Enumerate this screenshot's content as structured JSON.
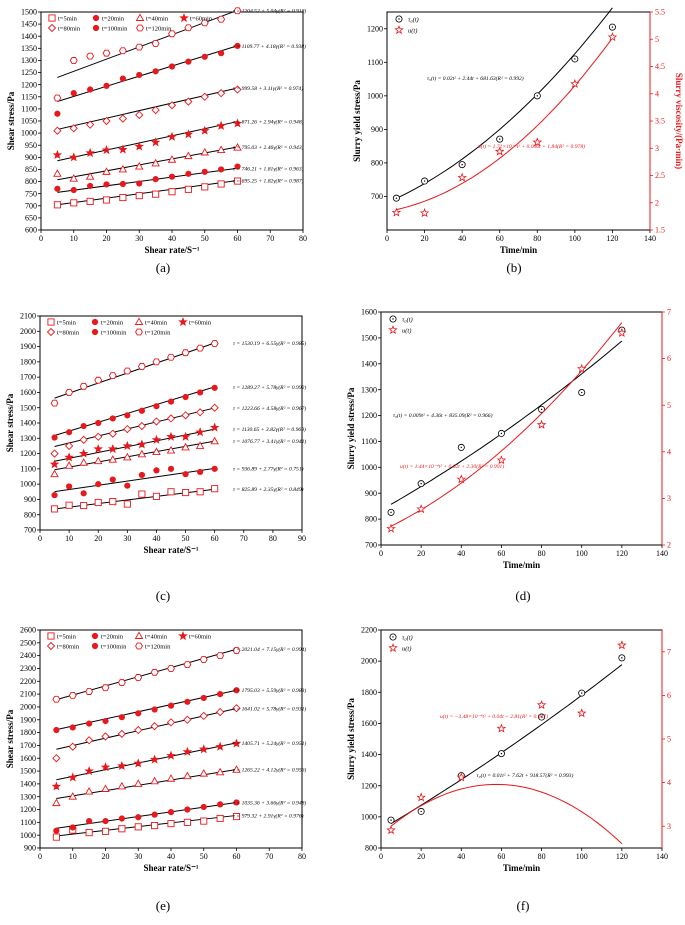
{
  "chart_data": [
    {
      "id": "a",
      "type": "scatter",
      "panel_label": "(a)",
      "xlabel": "Shear rate/S⁻¹",
      "ylabel": "Shear stress/Pa",
      "xlim": [
        0,
        80
      ],
      "ylim": [
        600,
        1500
      ],
      "xticks": [
        0,
        10,
        20,
        30,
        40,
        50,
        60,
        70,
        80
      ],
      "yticks": [
        600,
        650,
        700,
        750,
        800,
        850,
        900,
        950,
        1000,
        1050,
        1100,
        1150,
        1200,
        1250,
        1300,
        1350,
        1400,
        1450,
        1500
      ],
      "x": [
        5,
        10,
        15,
        20,
        25,
        30,
        35,
        40,
        45,
        50,
        55,
        60
      ],
      "series": [
        {
          "name": "t=5min",
          "marker": "square-open",
          "values": [
            704,
            712,
            718,
            724,
            734,
            742,
            748,
            758,
            768,
            778,
            790,
            802
          ],
          "fit": [
            695.25,
            1.82
          ],
          "equation": "τ = 695.25 + 1.82γ(R² = 0.987)"
        },
        {
          "name": "t=20min",
          "marker": "circle-filled",
          "values": [
            770,
            765,
            782,
            788,
            790,
            792,
            810,
            820,
            832,
            840,
            850,
            862
          ],
          "fit": [
            746.21,
            1.81
          ],
          "equation": "τ = 746.21 + 1.81γ(R² = 0.963)"
        },
        {
          "name": "t=40min",
          "marker": "triangle-open",
          "values": [
            832,
            812,
            820,
            840,
            850,
            862,
            875,
            890,
            905,
            920,
            930,
            940
          ],
          "fit": [
            795.03,
            2.46
          ],
          "equation": "τ = 795.03 + 2.46γ(R² = 0.943)"
        },
        {
          "name": "t=60min",
          "marker": "star-filled",
          "values": [
            910,
            900,
            918,
            930,
            932,
            945,
            962,
            985,
            995,
            1010,
            1030,
            1040
          ],
          "fit": [
            871.26,
            2.94
          ],
          "equation": "τ = 871.26 + 2.94γ(R² = 0.948)"
        },
        {
          "name": "t=80min",
          "marker": "diamond-open",
          "values": [
            1010,
            1020,
            1035,
            1050,
            1060,
            1075,
            1095,
            1115,
            1130,
            1150,
            1165,
            1180
          ],
          "fit": [
            999.58,
            3.11
          ],
          "equation": "τ = 999.58 + 3.11γ(R² = 0.974)"
        },
        {
          "name": "t=100min",
          "marker": "circle-filled",
          "values": [
            1080,
            1165,
            1180,
            1195,
            1225,
            1240,
            1255,
            1275,
            1295,
            1315,
            1330,
            1360
          ],
          "fit": [
            1109.77,
            4.18
          ],
          "equation": "τ = 1109.77 + 4.18γ(R² = 0.938)"
        },
        {
          "name": "t=120min",
          "marker": "hexagon-open",
          "values": [
            1145,
            1300,
            1318,
            1330,
            1340,
            1355,
            1370,
            1410,
            1435,
            1455,
            1470,
            1505
          ],
          "fit": [
            1204.52,
            5.04
          ],
          "equation": "τ = 1204.52 + 5.04γ(R² = 0.918)"
        }
      ]
    },
    {
      "id": "b",
      "type": "scatter",
      "panel_label": "(b)",
      "xlabel": "Time/min",
      "ylabel": "Slurry yield stress/Pa",
      "ylabel_right": "Slurry viscosity/(Pa·min)",
      "xlim": [
        0,
        140
      ],
      "ylim": [
        600,
        1250
      ],
      "ylim_right": [
        1.5,
        5.5
      ],
      "xticks": [
        0,
        20,
        40,
        60,
        80,
        100,
        120,
        140
      ],
      "yticks": [
        700,
        800,
        900,
        1000,
        1100,
        1200
      ],
      "yticks_right": [
        1.5,
        2.0,
        2.5,
        3.0,
        3.5,
        4.0,
        4.5,
        5.0,
        5.5
      ],
      "x": [
        5,
        20,
        40,
        60,
        80,
        100,
        120
      ],
      "series": [
        {
          "name": "τ₀(t)",
          "axis": "left",
          "color": "#000000",
          "marker": "circle-dot",
          "values": [
            695,
            746,
            795,
            871,
            1000,
            1110,
            1205
          ],
          "poly": [
            0.02,
            2.44,
            681.63
          ],
          "equation": "τ₀(t) = 0.02t² + 2.44t + 681.63(R² = 0.992)"
        },
        {
          "name": "u(t)",
          "axis": "right",
          "color": "#e8191d",
          "marker": "star-open",
          "values": [
            1.82,
            1.81,
            2.46,
            2.94,
            3.11,
            4.18,
            5.04
          ],
          "poly": [
            0.000171,
            0.006,
            1.84
          ],
          "equation": "u(t) = 1.71×10⁻⁴t² + 0.006t + 1.84(R² = 0.978)"
        }
      ]
    },
    {
      "id": "c",
      "type": "scatter",
      "panel_label": "(c)",
      "xlabel": "Shear rate/S⁻¹",
      "ylabel": "Shear stress/Pa",
      "xlim": [
        0,
        90
      ],
      "ylim": [
        700,
        2100
      ],
      "xticks": [
        0,
        10,
        20,
        30,
        40,
        50,
        60,
        70,
        80,
        90
      ],
      "yticks": [
        700,
        800,
        900,
        1000,
        1100,
        1200,
        1300,
        1400,
        1500,
        1600,
        1700,
        1800,
        1900,
        2000,
        2100
      ],
      "x": [
        5,
        10,
        15,
        20,
        25,
        30,
        35,
        40,
        45,
        50,
        55,
        60
      ],
      "series": [
        {
          "name": "t=5min",
          "marker": "square-open",
          "values": [
            838,
            862,
            860,
            880,
            886,
            870,
            935,
            920,
            950,
            945,
            950,
            970
          ],
          "fit": [
            825.89,
            2.35
          ],
          "equation": "τ = 825.89 + 2.35γ(R² = 0.849)"
        },
        {
          "name": "t=20min",
          "marker": "circle-filled",
          "values": [
            928,
            985,
            940,
            1000,
            1030,
            990,
            1060,
            1090,
            1100,
            1065,
            1080,
            1100
          ],
          "fit": [
            936.89,
            2.77
          ],
          "equation": "τ = 936.89 + 2.77γ(R² = 0.751)"
        },
        {
          "name": "t=40min",
          "marker": "triangle-open",
          "values": [
            1065,
            1120,
            1140,
            1150,
            1160,
            1175,
            1195,
            1210,
            1220,
            1240,
            1250,
            1280
          ],
          "fit": [
            1076.77,
            3.41
          ],
          "equation": "τ = 1076.77 + 3.41γ(R² = 0.941)"
        },
        {
          "name": "t=60min",
          "marker": "star-filled",
          "values": [
            1130,
            1175,
            1200,
            1230,
            1230,
            1250,
            1260,
            1290,
            1310,
            1310,
            1340,
            1370
          ],
          "fit": [
            1130.65,
            3.82
          ],
          "equation": "τ = 1130.65 + 3.82γ(R² = 0.969)"
        },
        {
          "name": "t=80min",
          "marker": "diamond-open",
          "values": [
            1200,
            1250,
            1290,
            1310,
            1330,
            1360,
            1380,
            1410,
            1430,
            1450,
            1470,
            1500
          ],
          "fit": [
            1223.66,
            4.58
          ],
          "equation": "τ = 1223.66 + 4.58γ(R² = 0.967)"
        },
        {
          "name": "t=100min",
          "marker": "circle-filled",
          "values": [
            1305,
            1340,
            1380,
            1400,
            1430,
            1450,
            1480,
            1510,
            1540,
            1570,
            1600,
            1630
          ],
          "fit": [
            1289.27,
            5.78
          ],
          "equation": "τ = 1289.27 + 5.78γ(R² = 0.992)"
        },
        {
          "name": "t=120min",
          "marker": "hexagon-open",
          "values": [
            1530,
            1600,
            1640,
            1680,
            1710,
            1740,
            1770,
            1800,
            1830,
            1860,
            1890,
            1920
          ],
          "fit": [
            1530.19,
            6.55
          ],
          "equation": "τ = 1530.19 + 6.55γ(R² = 0.985)"
        }
      ]
    },
    {
      "id": "d",
      "type": "scatter",
      "panel_label": "(d)",
      "xlabel": "Time/min",
      "ylabel": "Slurry yield stress/Pa",
      "ylabel_right": "Slurry viscosity/(Pa·min)",
      "xlim": [
        0,
        140
      ],
      "ylim": [
        700,
        1600
      ],
      "ylim_right": [
        2,
        7
      ],
      "xticks": [
        0,
        20,
        40,
        60,
        80,
        100,
        120,
        140
      ],
      "yticks": [
        700,
        800,
        900,
        1000,
        1100,
        1200,
        1300,
        1400,
        1500,
        1600
      ],
      "yticks_right": [
        2,
        3,
        4,
        5,
        6,
        7
      ],
      "x": [
        5,
        20,
        40,
        60,
        80,
        100,
        120
      ],
      "series": [
        {
          "name": "τ₀(t)",
          "axis": "left",
          "color": "#000000",
          "marker": "circle-dot",
          "values": [
            826,
            937,
            1077,
            1131,
            1224,
            1289,
            1530
          ],
          "poly": [
            0.009,
            4.36,
            835.09
          ],
          "equation": "τ₀(t) = 0.009t² + 4.36t + 835.09(R² = 0.966)"
        },
        {
          "name": "u(t)",
          "axis": "right",
          "color": "#e8191d",
          "marker": "star-open",
          "values": [
            2.35,
            2.77,
            3.41,
            3.82,
            4.58,
            5.78,
            6.55
          ],
          "poly": [
            0.000144,
            0.02,
            2.3
          ],
          "equation": "u(t) = 1.44×10⁻⁴t² + 0.02t + 2.30(R² = 0.991)"
        }
      ]
    },
    {
      "id": "e",
      "type": "scatter",
      "panel_label": "(e)",
      "xlabel": "Shear rate/S⁻¹",
      "ylabel": "Shear stress/Pa",
      "xlim": [
        0,
        80
      ],
      "ylim": [
        900,
        2600
      ],
      "xticks": [
        0,
        10,
        20,
        30,
        40,
        50,
        60,
        70,
        80
      ],
      "yticks": [
        900,
        1000,
        1100,
        1200,
        1300,
        1400,
        1500,
        1600,
        1700,
        1800,
        1900,
        2000,
        2100,
        2200,
        2300,
        2400,
        2500,
        2600
      ],
      "x": [
        5,
        10,
        15,
        20,
        25,
        30,
        35,
        40,
        45,
        50,
        55,
        60
      ],
      "series": [
        {
          "name": "t=5min",
          "marker": "square-open",
          "values": [
            985,
            1040,
            1020,
            1030,
            1050,
            1065,
            1075,
            1090,
            1100,
            1110,
            1130,
            1145
          ],
          "fit": [
            979.32,
            2.91
          ],
          "equation": "τ = 979.32 + 2.91γ(R² = 0.976)"
        },
        {
          "name": "t=20min",
          "marker": "circle-filled",
          "values": [
            1035,
            1060,
            1110,
            1110,
            1130,
            1140,
            1160,
            1180,
            1200,
            1220,
            1240,
            1255
          ],
          "fit": [
            1035.36,
            3.66
          ],
          "equation": "τ = 1035.36 + 3.66γ(R² = 0.948)"
        },
        {
          "name": "t=40min",
          "marker": "triangle-open",
          "values": [
            1250,
            1300,
            1340,
            1360,
            1380,
            1400,
            1420,
            1440,
            1460,
            1480,
            1490,
            1510
          ],
          "fit": [
            1265.22,
            4.12
          ],
          "equation": "τ = 1265.22 + 4.12γ(R² = 0.956)"
        },
        {
          "name": "t=60min",
          "marker": "star-filled",
          "values": [
            1380,
            1450,
            1500,
            1530,
            1540,
            1560,
            1590,
            1620,
            1650,
            1670,
            1690,
            1715
          ],
          "fit": [
            1405.71,
            5.24
          ],
          "equation": "τ = 1405.71 + 5.24γ(R² = 0.951)"
        },
        {
          "name": "t=80min",
          "marker": "diamond-open",
          "values": [
            1600,
            1690,
            1740,
            1770,
            1790,
            1820,
            1850,
            1880,
            1900,
            1930,
            1960,
            1990
          ],
          "fit": [
            1641.02,
            5.78
          ],
          "equation": "τ = 1641.02 + 5.78γ(R² = 0.931)"
        },
        {
          "name": "t=100min",
          "marker": "circle-filled",
          "values": [
            1820,
            1840,
            1870,
            1890,
            1920,
            1950,
            1980,
            2010,
            2040,
            2070,
            2100,
            2130
          ],
          "fit": [
            1795.03,
            5.59
          ],
          "equation": "τ = 1795.03 + 5.59γ(R² = 0.983)"
        },
        {
          "name": "t=120min",
          "marker": "hexagon-open",
          "values": [
            2060,
            2090,
            2120,
            2150,
            2190,
            2230,
            2270,
            2300,
            2330,
            2370,
            2400,
            2440
          ],
          "fit": [
            2021.04,
            7.15
          ],
          "equation": "τ = 2021.04 + 7.15γ(R² = 0.994)"
        }
      ]
    },
    {
      "id": "f",
      "type": "scatter",
      "panel_label": "(f)",
      "xlabel": "Time/min",
      "ylabel": "Slurry yield stress/Pa",
      "ylabel_right": "Slurry viscosity/(Pa·min)",
      "xlim": [
        0,
        140
      ],
      "ylim": [
        800,
        2200
      ],
      "ylim_right": [
        2.5,
        7.5
      ],
      "xticks": [
        0,
        20,
        40,
        60,
        80,
        100,
        120,
        140
      ],
      "yticks": [
        800,
        1000,
        1200,
        1400,
        1600,
        1800,
        2000,
        2200
      ],
      "yticks_right": [
        3,
        4,
        5,
        6,
        7
      ],
      "x": [
        5,
        20,
        40,
        60,
        80,
        100,
        120
      ],
      "series": [
        {
          "name": "τ₀(t)",
          "axis": "left",
          "color": "#000000",
          "marker": "circle-dot",
          "values": [
            979,
            1035,
            1265,
            1406,
            1641,
            1795,
            2021
          ],
          "poly": [
            0.01,
            7.62,
            918.57
          ],
          "equation": "τ₀(t) = 0.01t² + 7.62t + 918.57(R² = 0.993)"
        },
        {
          "name": "u(t)",
          "axis": "right",
          "color": "#e8191d",
          "marker": "star-open",
          "values": [
            2.91,
            3.66,
            4.12,
            5.24,
            5.78,
            5.59,
            7.15
          ],
          "poly": [
            -0.000348,
            0.04,
            2.81
          ],
          "equation": "u(t) = −3.48×10⁻⁴t² + 0.04t + 2.81(R² = 0.947)"
        }
      ]
    }
  ]
}
